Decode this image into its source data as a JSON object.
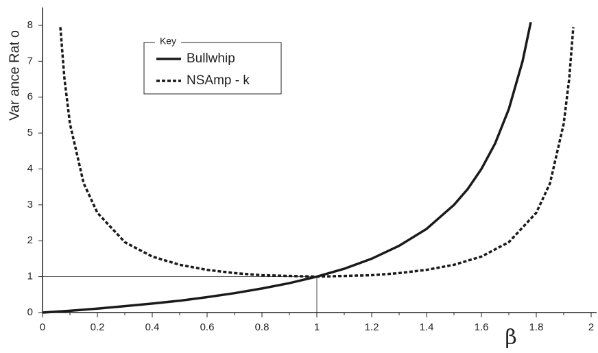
{
  "chart_data": {
    "type": "line",
    "ylabel": "Var ance Rat o",
    "xlabel": "β",
    "xlim": [
      0,
      2
    ],
    "ylim": [
      0,
      8.5
    ],
    "xticks": [
      0,
      0.2,
      0.4,
      0.6,
      0.8,
      1,
      1.2,
      1.4,
      1.6,
      1.8,
      2
    ],
    "xminorticks": [
      0.1,
      0.3,
      0.5,
      0.7,
      0.9,
      1.1,
      1.3,
      1.5,
      1.7,
      1.9
    ],
    "yticks": [
      0,
      1,
      2,
      3,
      4,
      5,
      6,
      7,
      8
    ],
    "legend": {
      "title": "Key",
      "corner": "upper left"
    },
    "reference": {
      "x": 1,
      "y": 1
    },
    "series": [
      {
        "name": "Bullwhip",
        "color": "#1a1a1a",
        "linestyle": "solid",
        "x": [
          0,
          0.1,
          0.2,
          0.3,
          0.4,
          0.5,
          0.6,
          0.7,
          0.8,
          0.9,
          1.0,
          1.1,
          1.2,
          1.3,
          1.4,
          1.5,
          1.55,
          1.6,
          1.65,
          1.7,
          1.75,
          1.78
        ],
        "values": [
          0,
          0.05,
          0.11,
          0.18,
          0.25,
          0.33,
          0.43,
          0.54,
          0.67,
          0.82,
          1,
          1.22,
          1.5,
          1.86,
          2.33,
          3,
          3.44,
          4,
          4.71,
          5.67,
          7,
          8.09
        ]
      },
      {
        "name": "NSAmp - k",
        "color": "#1a1a1a",
        "linestyle": "dashed",
        "x": [
          0.065,
          0.08,
          0.1,
          0.15,
          0.2,
          0.3,
          0.4,
          0.5,
          0.6,
          0.7,
          0.8,
          1.0,
          1.2,
          1.3,
          1.4,
          1.5,
          1.6,
          1.7,
          1.8,
          1.85,
          1.9,
          1.92,
          1.935
        ],
        "values": [
          7.95,
          6.51,
          5.26,
          3.6,
          2.78,
          1.96,
          1.56,
          1.33,
          1.19,
          1.1,
          1.04,
          1,
          1.04,
          1.1,
          1.19,
          1.33,
          1.56,
          1.96,
          2.78,
          3.6,
          5.26,
          6.51,
          7.95
        ]
      }
    ]
  }
}
